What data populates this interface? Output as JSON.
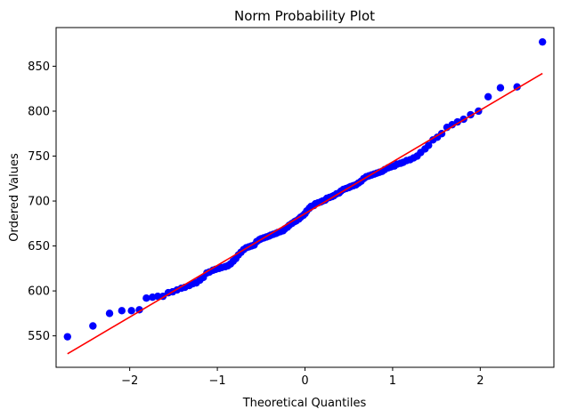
{
  "chart_data": {
    "type": "scatter",
    "title": "Norm Probability Plot",
    "xlabel": "Theoretical Quantiles",
    "ylabel": "Ordered Values",
    "xlim": [
      -2.84,
      2.84
    ],
    "ylim": [
      515,
      893
    ],
    "xticks": [
      -2,
      -1,
      0,
      1,
      2
    ],
    "yticks": [
      550,
      600,
      650,
      700,
      750,
      800,
      850
    ],
    "xtick_labels": [
      "−2",
      "−1",
      "0",
      "1",
      "2"
    ],
    "ytick_labels": [
      "550",
      "600",
      "650",
      "700",
      "750",
      "800",
      "850"
    ],
    "grid": false,
    "fit_line": {
      "color": "#ff0000",
      "x": [
        -2.71,
        2.71
      ],
      "y": [
        530,
        842
      ]
    },
    "marker_color": "#0000ff",
    "points": [
      [
        -2.71,
        549
      ],
      [
        -2.42,
        561
      ],
      [
        -2.23,
        575
      ],
      [
        -2.09,
        578
      ],
      [
        -1.98,
        578
      ],
      [
        -1.89,
        579
      ],
      [
        -1.81,
        592
      ],
      [
        -1.74,
        593
      ],
      [
        -1.68,
        594
      ],
      [
        -1.62,
        594
      ],
      [
        -1.56,
        598
      ],
      [
        -1.51,
        599
      ],
      [
        -1.46,
        601
      ],
      [
        -1.41,
        603
      ],
      [
        -1.37,
        604
      ],
      [
        -1.32,
        606
      ],
      [
        -1.28,
        608
      ],
      [
        -1.24,
        609
      ],
      [
        -1.2,
        612
      ],
      [
        -1.16,
        615
      ],
      [
        -1.12,
        620
      ],
      [
        -1.09,
        621
      ],
      [
        -1.05,
        623
      ],
      [
        -1.02,
        624
      ],
      [
        -0.98,
        625
      ],
      [
        -0.95,
        626
      ],
      [
        -0.91,
        627
      ],
      [
        -0.88,
        628
      ],
      [
        -0.85,
        630
      ],
      [
        -0.82,
        633
      ],
      [
        -0.79,
        636
      ],
      [
        -0.76,
        640
      ],
      [
        -0.73,
        643
      ],
      [
        -0.7,
        646
      ],
      [
        -0.67,
        648
      ],
      [
        -0.64,
        649
      ],
      [
        -0.61,
        650
      ],
      [
        -0.58,
        651
      ],
      [
        -0.55,
        655
      ],
      [
        -0.52,
        657
      ],
      [
        -0.5,
        658
      ],
      [
        -0.47,
        659
      ],
      [
        -0.44,
        660
      ],
      [
        -0.41,
        661
      ],
      [
        -0.39,
        662
      ],
      [
        -0.36,
        663
      ],
      [
        -0.33,
        664
      ],
      [
        -0.31,
        665
      ],
      [
        -0.28,
        666
      ],
      [
        -0.25,
        667
      ],
      [
        -0.23,
        669
      ],
      [
        -0.2,
        671
      ],
      [
        -0.18,
        673
      ],
      [
        -0.15,
        675
      ],
      [
        -0.12,
        677
      ],
      [
        -0.1,
        678
      ],
      [
        -0.07,
        680
      ],
      [
        -0.05,
        682
      ],
      [
        -0.02,
        684
      ],
      [
        0.0,
        686
      ],
      [
        0.02,
        689
      ],
      [
        0.05,
        692
      ],
      [
        0.07,
        694
      ],
      [
        0.1,
        695
      ],
      [
        0.12,
        697
      ],
      [
        0.15,
        698
      ],
      [
        0.18,
        699
      ],
      [
        0.2,
        700
      ],
      [
        0.23,
        701
      ],
      [
        0.25,
        703
      ],
      [
        0.28,
        704
      ],
      [
        0.31,
        705
      ],
      [
        0.33,
        706
      ],
      [
        0.36,
        708
      ],
      [
        0.39,
        709
      ],
      [
        0.41,
        711
      ],
      [
        0.44,
        713
      ],
      [
        0.47,
        714
      ],
      [
        0.5,
        715
      ],
      [
        0.52,
        716
      ],
      [
        0.55,
        717
      ],
      [
        0.58,
        718
      ],
      [
        0.61,
        720
      ],
      [
        0.64,
        722
      ],
      [
        0.67,
        725
      ],
      [
        0.7,
        727
      ],
      [
        0.73,
        728
      ],
      [
        0.76,
        729
      ],
      [
        0.79,
        730
      ],
      [
        0.82,
        731
      ],
      [
        0.85,
        732
      ],
      [
        0.88,
        733
      ],
      [
        0.91,
        735
      ],
      [
        0.95,
        737
      ],
      [
        0.98,
        738
      ],
      [
        1.02,
        739
      ],
      [
        1.05,
        741
      ],
      [
        1.09,
        742
      ],
      [
        1.12,
        743
      ],
      [
        1.16,
        745
      ],
      [
        1.2,
        746
      ],
      [
        1.24,
        748
      ],
      [
        1.28,
        750
      ],
      [
        1.32,
        754
      ],
      [
        1.37,
        758
      ],
      [
        1.41,
        762
      ],
      [
        1.46,
        768
      ],
      [
        1.51,
        771
      ],
      [
        1.56,
        775
      ],
      [
        1.62,
        782
      ],
      [
        1.68,
        785
      ],
      [
        1.74,
        788
      ],
      [
        1.81,
        791
      ],
      [
        1.89,
        796
      ],
      [
        1.98,
        800
      ],
      [
        2.09,
        816
      ],
      [
        2.23,
        826
      ],
      [
        2.42,
        827
      ],
      [
        2.71,
        877
      ]
    ]
  }
}
